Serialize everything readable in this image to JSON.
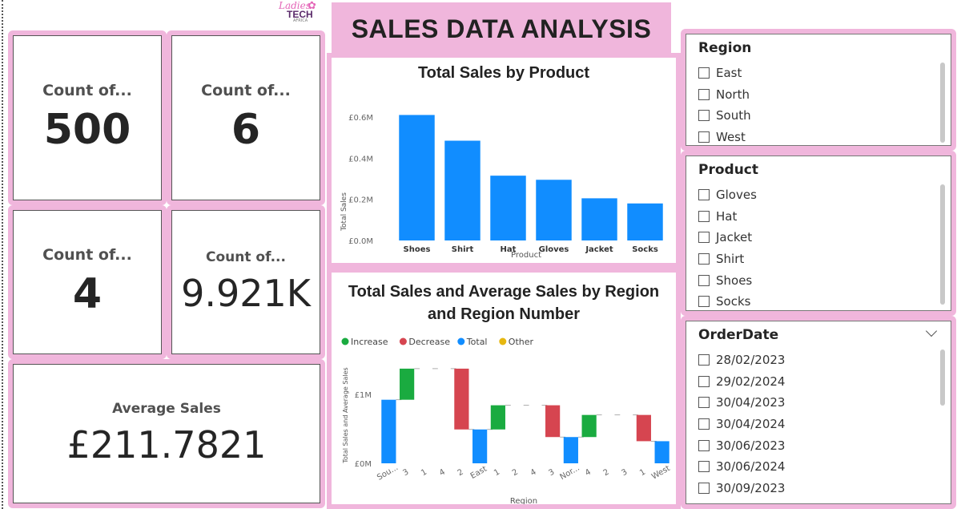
{
  "logo": {
    "line1": "Ladies",
    "line2": "TECH",
    "line3": "AFRICA"
  },
  "header": {
    "title": "SALES DATA ANALYSIS"
  },
  "kpis": [
    {
      "label": "Count of...",
      "value": "500"
    },
    {
      "label": "Count of...",
      "value": "6"
    },
    {
      "label": "Count of...",
      "value": "4"
    },
    {
      "label": "Count of...",
      "value": "9.921K"
    },
    {
      "label": "Average Sales",
      "value": "£211.7821"
    }
  ],
  "bar_chart": {
    "title": "Total Sales by Product",
    "xlabel": "Product",
    "ylabel": "Total Sales",
    "y_ticks": [
      "£0.0M",
      "£0.2M",
      "£0.4M",
      "£0.6M"
    ]
  },
  "waterfall_chart": {
    "title_line1": "Total Sales and Average Sales by Region",
    "title_line2": "and Region Number",
    "xlabel": "Region",
    "ylabel": "Total Sales and Average Sales",
    "y_ticks": [
      "£0M",
      "£1M"
    ],
    "legend": [
      {
        "label": "Increase",
        "color": "#1aab40"
      },
      {
        "label": "Decrease",
        "color": "#d64550"
      },
      {
        "label": "Total",
        "color": "#118dff"
      },
      {
        "label": "Other",
        "color": "#e6b710"
      }
    ]
  },
  "chart_data": [
    {
      "type": "bar",
      "title": "Total Sales by Product",
      "xlabel": "Product",
      "ylabel": "Total Sales",
      "categories": [
        "Shoes",
        "Shirt",
        "Hat",
        "Gloves",
        "Jacket",
        "Socks"
      ],
      "values": [
        0.61,
        0.485,
        0.315,
        0.295,
        0.205,
        0.18
      ],
      "unit": "£M",
      "ylim": [
        0,
        0.6
      ],
      "color": "#118dff"
    },
    {
      "type": "bar",
      "subtype": "waterfall",
      "title": "Total Sales and Average Sales by Region and Region Number",
      "xlabel": "Region",
      "ylabel": "Total Sales and Average Sales",
      "categories": [
        "Sou...",
        "3",
        "1",
        "4",
        "2",
        "East",
        "1",
        "2",
        "4",
        "3",
        "Nor...",
        "4",
        "2",
        "3",
        "1",
        "West"
      ],
      "steps": [
        {
          "kind": "total",
          "start": 0,
          "end": 0.92
        },
        {
          "kind": "increase",
          "start": 0.92,
          "end": 1.37
        },
        {
          "kind": "flat",
          "start": 1.37,
          "end": 1.37
        },
        {
          "kind": "flat",
          "start": 1.37,
          "end": 1.37
        },
        {
          "kind": "decrease",
          "start": 1.37,
          "end": 0.49
        },
        {
          "kind": "total",
          "start": 0,
          "end": 0.49
        },
        {
          "kind": "increase",
          "start": 0.49,
          "end": 0.84
        },
        {
          "kind": "flat",
          "start": 0.84,
          "end": 0.84
        },
        {
          "kind": "flat",
          "start": 0.84,
          "end": 0.84
        },
        {
          "kind": "decrease",
          "start": 0.84,
          "end": 0.38
        },
        {
          "kind": "total",
          "start": 0,
          "end": 0.38
        },
        {
          "kind": "increase",
          "start": 0.38,
          "end": 0.7
        },
        {
          "kind": "flat",
          "start": 0.7,
          "end": 0.7
        },
        {
          "kind": "flat",
          "start": 0.7,
          "end": 0.7
        },
        {
          "kind": "decrease",
          "start": 0.7,
          "end": 0.32
        },
        {
          "kind": "total",
          "start": 0,
          "end": 0.32
        }
      ],
      "ylim": [
        0,
        1.45
      ],
      "unit": "£M"
    }
  ],
  "slicers": {
    "region": {
      "title": "Region",
      "items": [
        "East",
        "North",
        "South",
        "West"
      ]
    },
    "product": {
      "title": "Product",
      "items": [
        "Gloves",
        "Hat",
        "Jacket",
        "Shirt",
        "Shoes",
        "Socks"
      ]
    },
    "orderdate": {
      "title": "OrderDate",
      "items": [
        "28/02/2023",
        "29/02/2024",
        "30/04/2023",
        "30/04/2024",
        "30/06/2023",
        "30/06/2024",
        "30/09/2023"
      ]
    }
  }
}
